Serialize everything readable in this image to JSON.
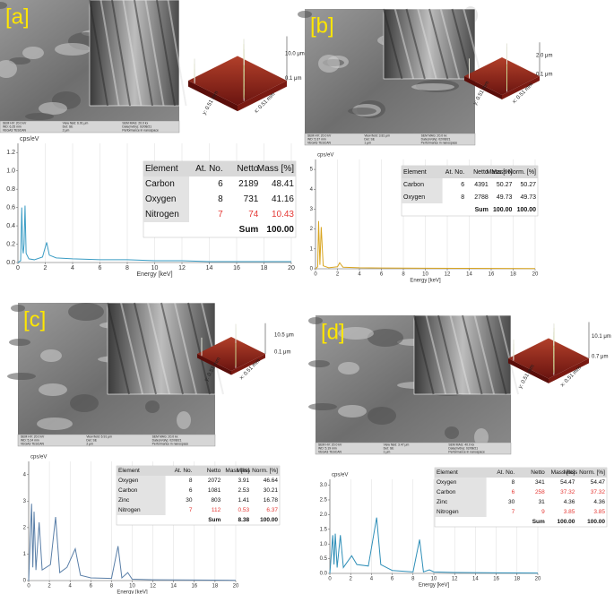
{
  "panels": [
    {
      "label": "[a]",
      "sem_footer": [
        "SEM HV: 20.0 kV",
        "WD: 6.25 mm",
        "VEGA3 TESCAN",
        "View field: 6.91 μm",
        "Det: SE",
        "2 μm",
        "SEM MAG: 20.0 kx",
        "Date(m/d/y): 02/08/21",
        "Performance in nanospace"
      ],
      "afm": {
        "z_max": "10.0 μm",
        "z_min": "0.1 μm",
        "y_size": "y: 0.51 mm",
        "x_size": "x: 0.51 mm"
      },
      "spectrum": {
        "type": "line",
        "y_label": "cps/eV",
        "x_label": "Energy [keV]",
        "color": "#3a9cc4",
        "x": [
          0,
          0.2,
          0.28,
          0.35,
          0.39,
          0.45,
          0.52,
          0.6,
          0.8,
          1.2,
          1.8,
          2.1,
          2.3,
          2.8,
          4,
          6,
          8,
          10,
          12,
          14,
          16,
          18,
          20
        ],
        "y": [
          0,
          0.02,
          0.6,
          0.15,
          0.1,
          0.2,
          0.62,
          0.1,
          0.04,
          0.03,
          0.06,
          0.22,
          0.08,
          0.05,
          0.04,
          0.03,
          0.03,
          0.02,
          0.02,
          0.01,
          0.01,
          0.01,
          0.01
        ],
        "xlim": [
          0,
          20
        ],
        "ylim": [
          0,
          1.3
        ],
        "xticks": [
          0,
          2,
          4,
          6,
          8,
          10,
          12,
          14,
          16,
          18,
          20
        ],
        "yticks": [
          {
            "value": 0,
            "label": "0.0"
          },
          {
            "value": 0.2,
            "label": "0.2"
          },
          {
            "value": 0.4,
            "label": "0.4"
          },
          {
            "value": 0.6,
            "label": "0.6"
          },
          {
            "value": 0.8,
            "label": "0.8"
          },
          {
            "value": 1,
            "label": "1.0"
          },
          {
            "value": 1.2,
            "label": "1.2"
          }
        ],
        "grid": true
      },
      "table": {
        "header": [
          "Element",
          "At. No.",
          "Netto",
          "Mass [%]"
        ],
        "rows": [
          [
            "Carbon",
            "6",
            "2189",
            "48.41"
          ],
          [
            "Oxygen",
            "8",
            "731",
            "41.16"
          ],
          [
            "Nitrogen",
            "7",
            "74",
            "10.43"
          ]
        ],
        "sum": {
          "label": "Sum",
          "values": [
            "100.00"
          ]
        },
        "highlight_rows": [
          2
        ],
        "highlight_color": "#e53935"
      }
    },
    {
      "label": "[b]",
      "sem_footer": [
        "SEM HV: 20.0 kV",
        "WD: 5.37 mm",
        "VEGA3 TESCAN",
        "View field: 3.81 μm",
        "Det: SE",
        "1 μm",
        "SEM MAG: 20.0 kx",
        "Date(m/d/y): 02/08/21",
        "Performance in nanospace"
      ],
      "afm": {
        "z_max": "2.0 μm",
        "z_min": "0.1 μm",
        "y_size": "y: 0.51 mm",
        "x_size": "x: 0.51 mm"
      },
      "spectrum": {
        "type": "line",
        "y_label": "cps/eV",
        "x_label": "Energy [keV]",
        "color": "#d9a520",
        "x": [
          0,
          0.2,
          0.28,
          0.4,
          0.52,
          0.7,
          1.2,
          2,
          2.2,
          2.5,
          4,
          6,
          10,
          14,
          20
        ],
        "y": [
          0,
          0.1,
          2.4,
          0.2,
          2.1,
          0.15,
          0.05,
          0.1,
          0.3,
          0.08,
          0.05,
          0.04,
          0.03,
          0.02,
          0.01
        ],
        "xlim": [
          0,
          20
        ],
        "ylim": [
          0,
          5.5
        ],
        "xticks": [
          0,
          2,
          4,
          6,
          8,
          10,
          12,
          14,
          16,
          18,
          20
        ],
        "yticks": [
          0,
          1,
          2,
          3,
          4,
          5
        ],
        "grid": true
      },
      "table": {
        "header": [
          "Element",
          "At. No.",
          "Netto",
          "Mass [%]",
          "Mass Norm. [%]"
        ],
        "rows": [
          [
            "Carbon",
            "6",
            "4391",
            "50.27",
            "50.27"
          ],
          [
            "Oxygen",
            "8",
            "2788",
            "49.73",
            "49.73"
          ]
        ],
        "sum": {
          "label": "Sum",
          "values": [
            "100.00",
            "100.00"
          ]
        },
        "highlight_rows": [],
        "highlight_color": "#e53935"
      }
    },
    {
      "label": "[c]",
      "sem_footer": [
        "SEM HV: 20.0 kV",
        "WD: 5.24 mm",
        "VEGA3 TESCAN",
        "View field: 6.91 μm",
        "Det: SE",
        "2 μm",
        "SEM MAG: 20.0 kx",
        "Date(m/d/y): 02/08/21",
        "Performance in nanospace"
      ],
      "afm": {
        "z_max": "10.5 μm",
        "z_min": "0.1 μm",
        "y_size": "y: 0.51 mm",
        "x_size": "x: 0.51 mm"
      },
      "spectrum": {
        "type": "line",
        "y_label": "cps/eV",
        "x_label": "Energy [keV]",
        "color": "#5a7fa8",
        "x": [
          0,
          0.28,
          0.4,
          0.52,
          0.7,
          1.01,
          1.3,
          2.1,
          2.6,
          3,
          3.7,
          4.5,
          5,
          6,
          8,
          8.63,
          9,
          9.57,
          10,
          12,
          16,
          20
        ],
        "y": [
          0,
          2.9,
          0.5,
          2.6,
          0.4,
          2.2,
          0.4,
          0.6,
          2.4,
          0.3,
          0.5,
          1.2,
          0.2,
          0.1,
          0.08,
          1.3,
          0.1,
          0.3,
          0.05,
          0.03,
          0.02,
          0.01
        ],
        "xlim": [
          0,
          20
        ],
        "ylim": [
          0,
          4.5
        ],
        "xticks": [
          0,
          2,
          4,
          6,
          8,
          10,
          12,
          14,
          16,
          18,
          20
        ],
        "yticks": [
          0,
          1,
          2,
          3,
          4
        ],
        "grid": true
      },
      "table": {
        "header": [
          "Element",
          "At. No.",
          "Netto",
          "Mass [%]",
          "Mass Norm. [%]"
        ],
        "rows": [
          [
            "Oxygen",
            "8",
            "2072",
            "3.91",
            "46.64"
          ],
          [
            "Carbon",
            "6",
            "1081",
            "2.53",
            "30.21"
          ],
          [
            "Zinc",
            "30",
            "803",
            "1.41",
            "16.78"
          ],
          [
            "Nitrogen",
            "7",
            "112",
            "0.53",
            "6.37"
          ]
        ],
        "sum": {
          "label": "Sum",
          "values": [
            "8.38",
            "100.00"
          ]
        },
        "highlight_rows": [
          3
        ],
        "highlight_color": "#e53935"
      }
    },
    {
      "label": "[d]",
      "sem_footer": [
        "SEM HV: 20.0 kV",
        "WD: 5.19 mm",
        "VEGA3 TESCAN",
        "View field: 3.47 μm",
        "Det: SE",
        "1 μm",
        "SEM MAG: 40.0 kx",
        "Date(m/d/y): 02/08/21",
        "Performance in nanospace"
      ],
      "afm": {
        "z_max": "10.1 μm",
        "z_min": "0.7 μm",
        "y_size": "y: 0.51 mm",
        "x_size": "x: 0.51 mm"
      },
      "spectrum": {
        "type": "line",
        "y_label": "cps/eV",
        "x_label": "Energy [keV]",
        "color": "#2f8fb8",
        "x": [
          0,
          0.28,
          0.4,
          0.52,
          0.7,
          1.01,
          1.3,
          2.1,
          2.6,
          3.7,
          4.5,
          4.9,
          6,
          8,
          8.63,
          9,
          9.57,
          10,
          12,
          16,
          20
        ],
        "y": [
          0,
          1.3,
          0.3,
          1.35,
          0.2,
          1.3,
          0.2,
          0.6,
          0.3,
          0.25,
          1.9,
          0.3,
          0.1,
          0.05,
          1.15,
          0.05,
          0.12,
          0.05,
          0.03,
          0.02,
          0.01
        ],
        "xlim": [
          0,
          20
        ],
        "ylim": [
          0,
          3.2
        ],
        "xticks": [
          0,
          2,
          4,
          6,
          8,
          10,
          12,
          14,
          16,
          18,
          20
        ],
        "yticks": [
          {
            "value": 0,
            "label": "0.0"
          },
          {
            "value": 0.5,
            "label": "0.5"
          },
          {
            "value": 1,
            "label": "1.0"
          },
          {
            "value": 1.5,
            "label": "1.5"
          },
          {
            "value": 2,
            "label": "2.0"
          },
          {
            "value": 2.5,
            "label": "2.5"
          },
          {
            "value": 3,
            "label": "3.0"
          }
        ],
        "grid": true
      },
      "table": {
        "header": [
          "Element",
          "At. No.",
          "Netto",
          "Mass [%]",
          "Mass Norm. [%]"
        ],
        "rows": [
          [
            "Oxygen",
            "8",
            "341",
            "54.47",
            "54.47"
          ],
          [
            "Carbon",
            "6",
            "258",
            "37.32",
            "37.32"
          ],
          [
            "Zinc",
            "30",
            "31",
            "4.36",
            "4.36"
          ],
          [
            "Nitrogen",
            "7",
            "9",
            "3.85",
            "3.85"
          ]
        ],
        "sum": {
          "label": "Sum",
          "values": [
            "100.00",
            "100.00"
          ]
        },
        "highlight_rows": [
          1,
          3
        ],
        "highlight_color": "#e53935"
      }
    }
  ]
}
